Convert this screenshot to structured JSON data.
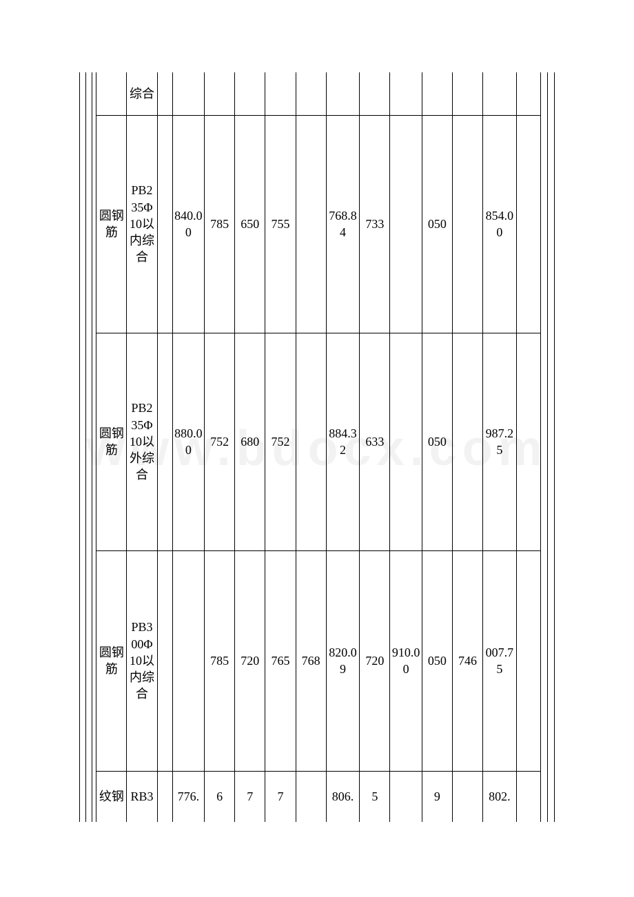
{
  "watermark": "www.bdocx.com",
  "table": {
    "border_color": "#000000",
    "background_color": "#ffffff",
    "font_size": 18,
    "rows": [
      {
        "name": "",
        "spec": "综合",
        "cells": [
          "",
          "",
          "",
          "",
          "",
          "",
          "",
          "",
          "",
          "",
          "",
          ""
        ]
      },
      {
        "name": "圆钢筋",
        "spec": "PB235Φ10以内综合",
        "cells": [
          "",
          "840.00",
          "785",
          "650",
          "755",
          "",
          "768.84",
          "733",
          "",
          "050",
          "",
          "854.00"
        ]
      },
      {
        "name": "圆钢筋",
        "spec": "PB235Φ10以外综合",
        "cells": [
          "",
          "880.00",
          "752",
          "680",
          "752",
          "",
          "884.32",
          "633",
          "",
          "050",
          "",
          "987.25"
        ]
      },
      {
        "name": "圆钢筋",
        "spec": "PB300Φ10以内综合",
        "cells": [
          "",
          "",
          "785",
          "720",
          "765",
          "768",
          "820.09",
          "720",
          "910.00",
          "050",
          "746",
          "007.75"
        ]
      },
      {
        "name": "纹钢",
        "spec": "RB3",
        "cells": [
          "",
          "776.",
          "6",
          "7",
          "7",
          "",
          "806.",
          "5",
          "",
          "9",
          "",
          "802."
        ]
      }
    ]
  }
}
